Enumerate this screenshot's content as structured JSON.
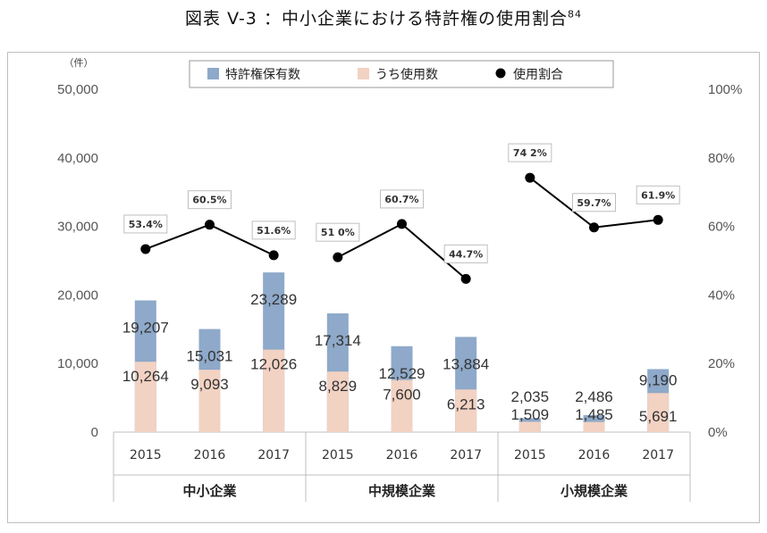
{
  "page": {
    "title": "図表 V-3 ：中小企業における特許権の使用割合",
    "footnote_mark": "84",
    "unit_label": "（件）"
  },
  "colors": {
    "total": "#8ea9c9",
    "used": "#f2d2c3",
    "rate": "#000000"
  },
  "chart_data": {
    "type": "bar",
    "legend": {
      "position": "top-center",
      "items": [
        "特許権保有数",
        "うち使用数",
        "使用割合"
      ]
    },
    "groups": [
      {
        "label": "中小企業",
        "categories": [
          "2015",
          "2016",
          "2017"
        ],
        "total": [
          19207,
          15031,
          23289
        ],
        "used": [
          10264,
          9093,
          12026
        ],
        "rate": [
          53.4,
          60.5,
          51.6
        ]
      },
      {
        "label": "中規模企業",
        "categories": [
          "2015",
          "2016",
          "2017"
        ],
        "total": [
          17314,
          12529,
          13884
        ],
        "used": [
          8829,
          7600,
          6213
        ],
        "rate": [
          51.0,
          60.7,
          44.7
        ]
      },
      {
        "label": "小規模企業",
        "categories": [
          "2015",
          "2016",
          "2017"
        ],
        "total": [
          2035,
          2486,
          9190
        ],
        "used": [
          1509,
          1485,
          5691
        ],
        "rate": [
          74.2,
          59.7,
          61.9
        ]
      }
    ],
    "total_labels": [
      [
        "19,207",
        "15,031",
        "23,289"
      ],
      [
        "17,314",
        "12,529",
        "13,884"
      ],
      [
        "2,035",
        "2,486",
        "9,190"
      ]
    ],
    "used_labels": [
      [
        "10,264",
        "9,093",
        "12,026"
      ],
      [
        "8,829",
        "7,600",
        "6,213"
      ],
      [
        "1,509",
        "1,485",
        "5,691"
      ]
    ],
    "rate_labels": [
      [
        "53.4%",
        "60.5%",
        "51.6%"
      ],
      [
        "51 0%",
        "60.7%",
        "44.7%"
      ],
      [
        "74 2%",
        "59.7%",
        "61.9%"
      ]
    ],
    "y_left": {
      "min": 0,
      "max": 50000,
      "ticks": [
        "0",
        "10,000",
        "20,000",
        "30,000",
        "40,000",
        "50,000"
      ]
    },
    "y_right": {
      "min": 0,
      "max": 100,
      "ticks": [
        "0%",
        "20%",
        "40%",
        "60%",
        "80%",
        "100%"
      ]
    },
    "grid": false
  }
}
